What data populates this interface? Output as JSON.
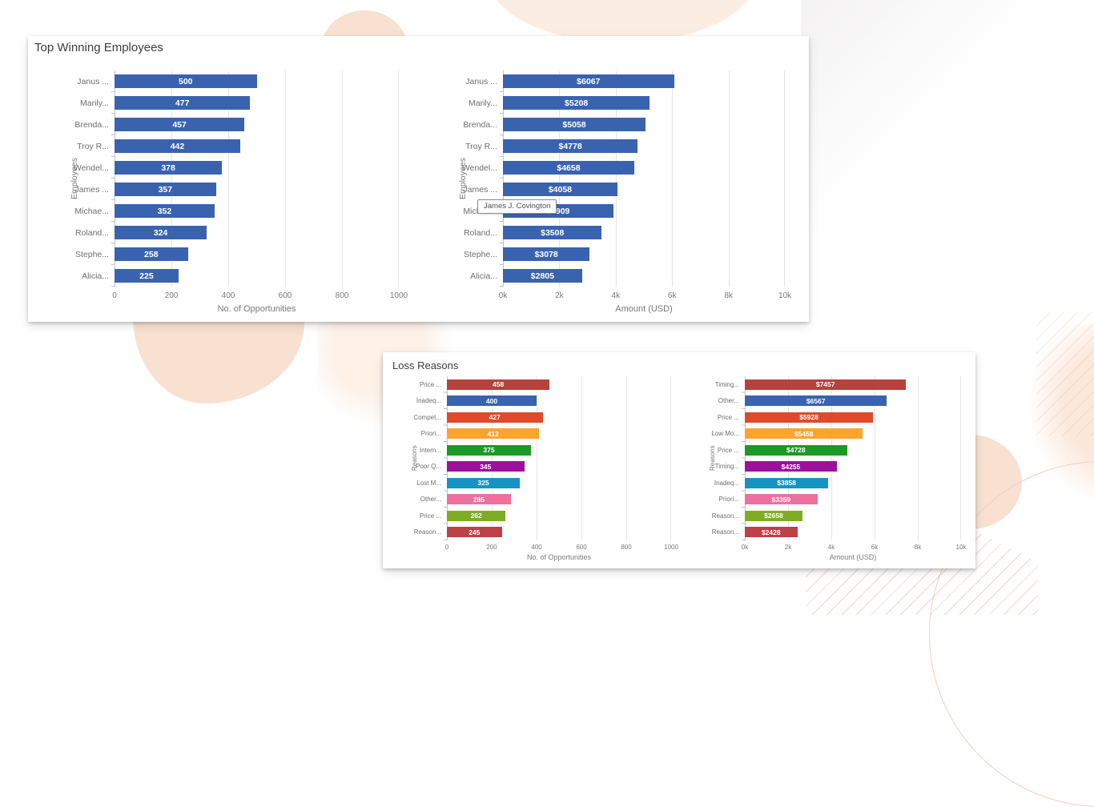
{
  "background": {
    "blob_color": "#f8e1d1",
    "hatch_color": "#e59494",
    "circle_outline_color": "#f2cfc7"
  },
  "tooltip": {
    "text": "James J. Covington"
  },
  "panels": [
    {
      "title": "Top Winning Employees"
    },
    {
      "title": "Loss Reasons"
    }
  ],
  "chart_data": [
    {
      "type": "bar",
      "orientation": "horizontal",
      "panel": "Top Winning Employees",
      "ylabel": "Employees",
      "xlabel": "No. of Opportunities",
      "categories": [
        "Janus ...",
        "Marily...",
        "Brenda...",
        "Troy R...",
        "Wendel...",
        "James ...",
        "Michae...",
        "Roland...",
        "Stephe...",
        "Alicia..."
      ],
      "values": [
        500,
        477,
        457,
        442,
        378,
        357,
        352,
        324,
        258,
        225
      ],
      "bar_labels": [
        "500",
        "477",
        "457",
        "442",
        "378",
        "357",
        "352",
        "324",
        "258",
        "225"
      ],
      "bar_colors": "#3a63af",
      "xlim": [
        0,
        1000
      ],
      "xticks": [
        "0",
        "200",
        "400",
        "600",
        "800",
        "1000"
      ],
      "grid": true,
      "legend": "none"
    },
    {
      "type": "bar",
      "orientation": "horizontal",
      "panel": "Top Winning Employees",
      "ylabel": "Employees",
      "xlabel": "Amount (USD)",
      "categories": [
        "Janus ...",
        "Marily...",
        "Brenda...",
        "Troy R...",
        "Wendel...",
        "James ...",
        "Michae...",
        "Roland...",
        "Stephe...",
        "Alicia..."
      ],
      "values": [
        6067,
        5208,
        5058,
        4778,
        4658,
        4058,
        3909,
        3508,
        3078,
        2805
      ],
      "bar_labels": [
        "$6067",
        "$5208",
        "$5058",
        "$4778",
        "$4658",
        "$4058",
        "$3909",
        "$3508",
        "$3078",
        "$2805"
      ],
      "bar_colors": "#3a63af",
      "xlim": [
        0,
        10000
      ],
      "xticks": [
        "0k",
        "2k",
        "4k",
        "6k",
        "8k",
        "10k"
      ],
      "grid": true,
      "legend": "none"
    },
    {
      "type": "bar",
      "orientation": "horizontal",
      "panel": "Loss Reasons",
      "ylabel": "Reasons",
      "xlabel": "No. of Opportunities",
      "categories": [
        "Price ...",
        "Inadeq...",
        "Compet...",
        "Priori...",
        "Intern...",
        "Poor Q...",
        "Lost M...",
        "Other...",
        "Price ...",
        "Reason..."
      ],
      "values": [
        458,
        400,
        427,
        412,
        375,
        345,
        325,
        285,
        262,
        245
      ],
      "bar_labels": [
        "458",
        "400",
        "427",
        "412",
        "375",
        "345",
        "325",
        "285",
        "262",
        "245"
      ],
      "bar_colors": [
        "#b5423c",
        "#3a63af",
        "#dd4b2c",
        "#fda42d",
        "#1b9a27",
        "#9c109e",
        "#1793c2",
        "#ef6f9f",
        "#7ead24",
        "#bf4046"
      ],
      "xlim": [
        0,
        1000
      ],
      "xticks": [
        "0",
        "200",
        "400",
        "600",
        "800",
        "1000"
      ],
      "grid": true,
      "legend": "none"
    },
    {
      "type": "bar",
      "orientation": "horizontal",
      "panel": "Loss Reasons",
      "ylabel": "Reasons",
      "xlabel": "Amount (USD)",
      "categories": [
        "Timing...",
        "Other...",
        "Price ...",
        "Low Mo...",
        "Price ...",
        "Timing...",
        "Inadeq...",
        "Priori...",
        "Reason...",
        "Reason..."
      ],
      "values": [
        7457,
        6567,
        5928,
        5458,
        4728,
        4255,
        3858,
        3359,
        2658,
        2428
      ],
      "bar_labels": [
        "$7457",
        "$6567",
        "$5928",
        "$5458",
        "$4728",
        "$4255",
        "$3858",
        "$3359",
        "$2658",
        "$2428"
      ],
      "bar_colors": [
        "#b5423c",
        "#3a63af",
        "#dd4b2c",
        "#fda42d",
        "#1b9a27",
        "#9c109e",
        "#1793c2",
        "#ef6f9f",
        "#7ead24",
        "#bf4046"
      ],
      "xlim": [
        0,
        10000
      ],
      "xticks": [
        "0k",
        "2k",
        "4k",
        "6k",
        "8k",
        "10k"
      ],
      "grid": true,
      "legend": "none"
    }
  ]
}
